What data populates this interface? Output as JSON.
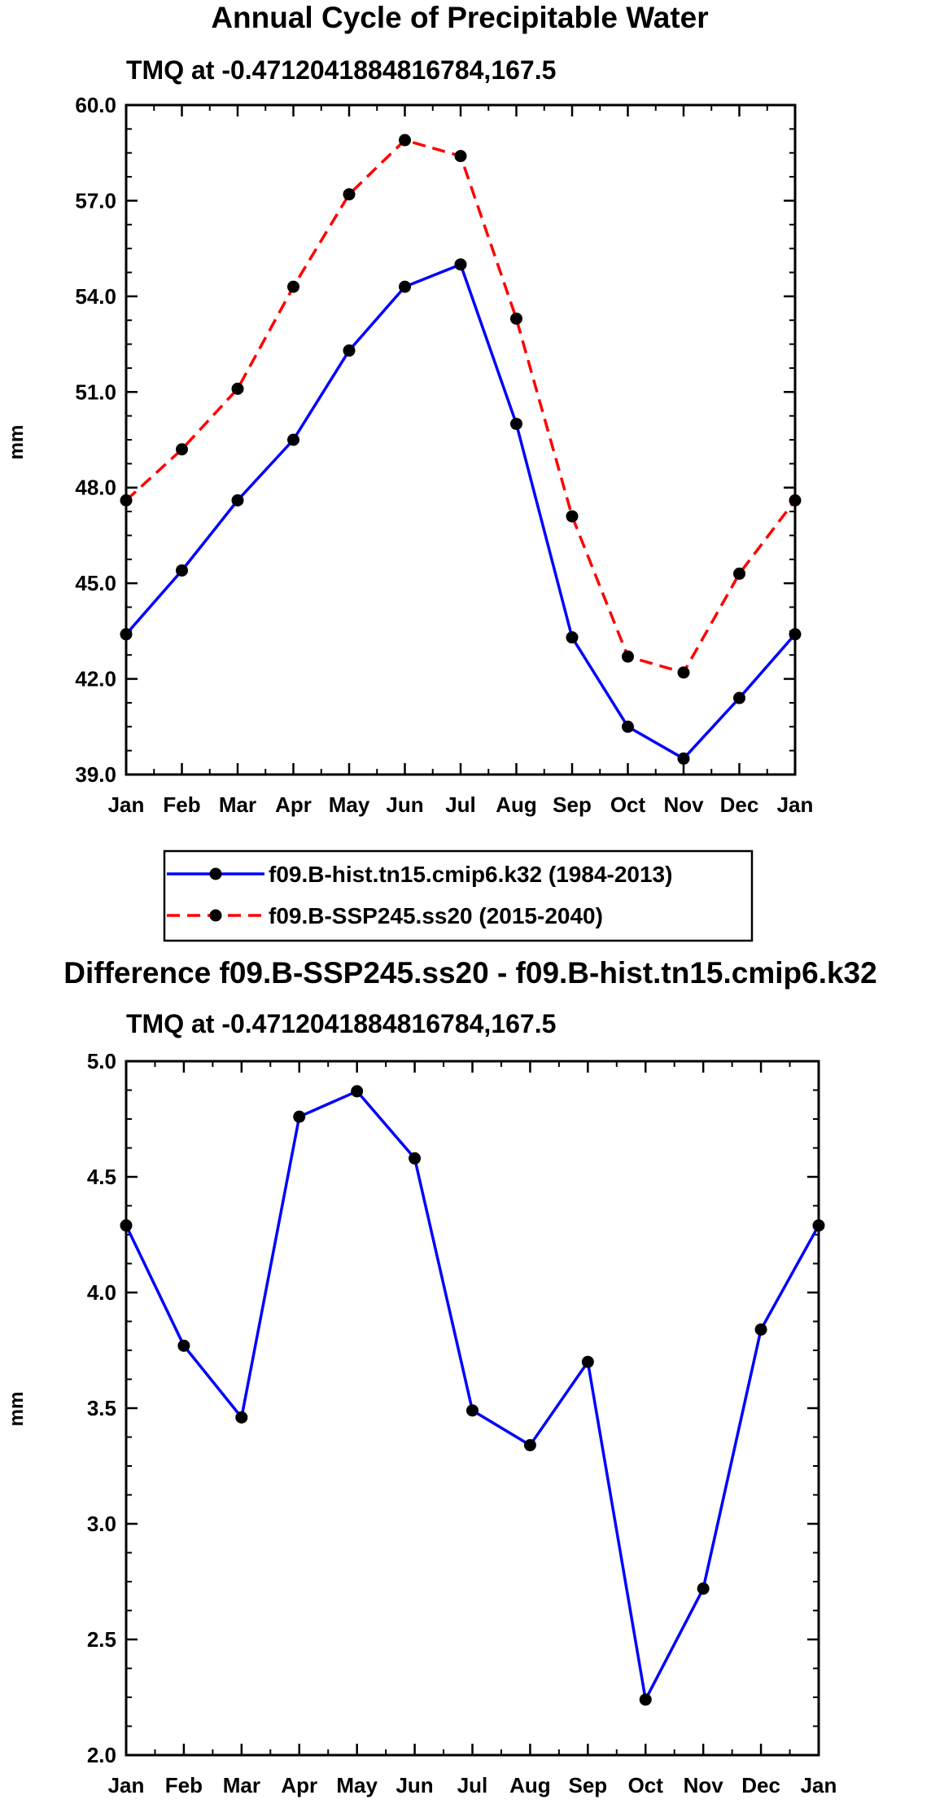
{
  "chart_data": [
    {
      "type": "line",
      "title": "Annual Cycle of Precipitable Water",
      "subtitle": "TMQ at -0.4712041884816784,167.5",
      "ylabel": "mm",
      "xlabel": "",
      "ylim": [
        39.0,
        60.0
      ],
      "yticks": [
        "39.0",
        "42.0",
        "45.0",
        "48.0",
        "51.0",
        "54.0",
        "57.0",
        "60.0"
      ],
      "categories": [
        "Jan",
        "Feb",
        "Mar",
        "Apr",
        "May",
        "Jun",
        "Jul",
        "Aug",
        "Sep",
        "Oct",
        "Nov",
        "Dec",
        "Jan"
      ],
      "series": [
        {
          "name": "f09.B-hist.tn15.cmip6.k32 (1984-2013)",
          "color": "#0000ff",
          "dash": "solid",
          "values": [
            43.4,
            45.4,
            47.6,
            49.5,
            52.3,
            54.3,
            55.0,
            50.0,
            43.3,
            40.5,
            39.5,
            41.4,
            43.4
          ]
        },
        {
          "name": "f09.B-SSP245.ss20 (2015-2040)",
          "color": "#ff0000",
          "dash": "dashed",
          "values": [
            47.6,
            49.2,
            51.1,
            54.3,
            57.2,
            58.9,
            58.4,
            53.3,
            47.1,
            42.7,
            42.2,
            45.3,
            47.6
          ]
        }
      ]
    },
    {
      "type": "line",
      "title": "Difference f09.B-SSP245.ss20 - f09.B-hist.tn15.cmip6.k32",
      "subtitle": "TMQ at -0.4712041884816784,167.5",
      "ylabel": "mm",
      "xlabel": "",
      "ylim": [
        2.0,
        5.0
      ],
      "yticks": [
        "2.0",
        "2.5",
        "3.0",
        "3.5",
        "4.0",
        "4.5",
        "5.0"
      ],
      "categories": [
        "Jan",
        "Feb",
        "Mar",
        "Apr",
        "May",
        "Jun",
        "Jul",
        "Aug",
        "Sep",
        "Oct",
        "Nov",
        "Dec",
        "Jan"
      ],
      "series": [
        {
          "name": "Difference",
          "color": "#0000ff",
          "dash": "solid",
          "values": [
            4.29,
            3.77,
            3.46,
            4.76,
            4.87,
            4.58,
            3.49,
            3.34,
            3.7,
            2.24,
            2.72,
            3.84,
            4.29
          ]
        }
      ]
    }
  ]
}
